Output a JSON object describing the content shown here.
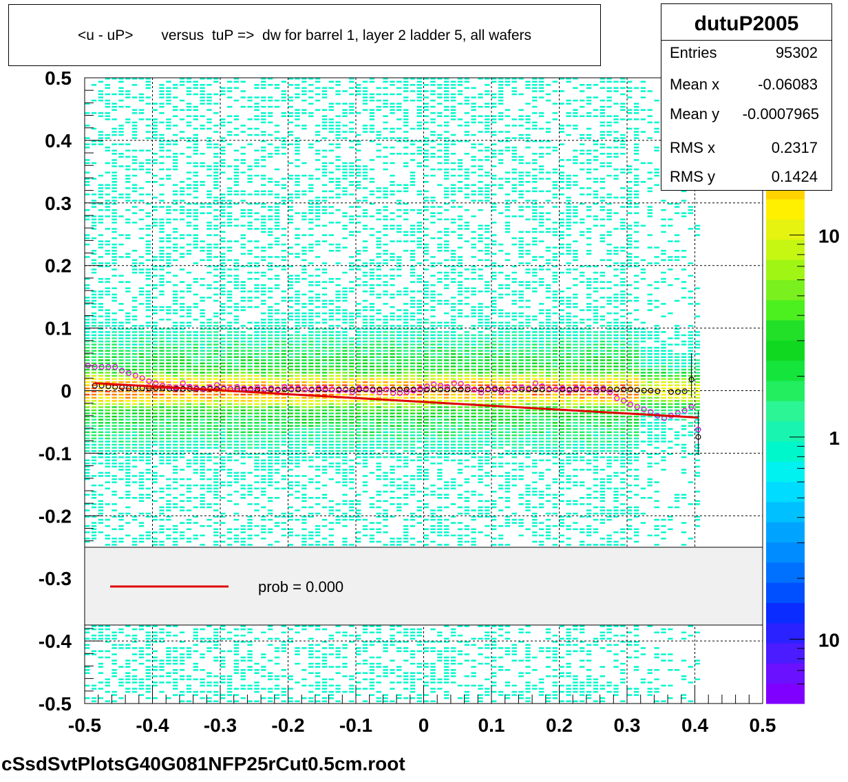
{
  "title": "<u - uP>       versus  tuP =>  dw for barrel 1, layer 2 ladder 5, all wafers",
  "footer": "cSsdSvtPlotsG40G081NFP25rCut0.5cm.root",
  "stats": {
    "name": "dutuP2005",
    "rows": [
      {
        "label": "Entries",
        "value": "95302"
      },
      {
        "label": "Mean x",
        "value": "-0.06083"
      },
      {
        "label": "Mean y",
        "value": "-0.0007965"
      },
      {
        "label": "RMS x",
        "value": "0.2317"
      },
      {
        "label": "RMS y",
        "value": "0.1424"
      }
    ]
  },
  "legend": {
    "label": "prob = 0.000",
    "line_color": "#e00000"
  },
  "chart_data": {
    "type": "heatmap",
    "xlim": [
      -0.5,
      0.5
    ],
    "ylim": [
      -0.5,
      0.5
    ],
    "x_ticks": [
      "-0.5",
      "-0.4",
      "-0.3",
      "-0.2",
      "-0.1",
      "0",
      "0.1",
      "0.2",
      "0.3",
      "0.4",
      "0.5"
    ],
    "y_ticks": [
      "-0.5",
      "-0.4",
      "-0.3",
      "-0.2",
      "-0.1",
      "0",
      "0.1",
      "0.2",
      "0.3",
      "0.4",
      "0.5"
    ],
    "x_tick_values": [
      -0.5,
      -0.4,
      -0.3,
      -0.2,
      -0.1,
      0,
      0.1,
      0.2,
      0.3,
      0.4,
      0.5
    ],
    "y_tick_values": [
      -0.5,
      -0.4,
      -0.3,
      -0.2,
      -0.1,
      0,
      0.1,
      0.2,
      0.3,
      0.4,
      0.5
    ],
    "grid": true,
    "log_z": true,
    "z_labels": [
      {
        "label": "10",
        "z": 10
      },
      {
        "label": "1",
        "z": 1
      },
      {
        "label": "10",
        "z": 0.1
      }
    ],
    "palette": [
      "#7f00ff",
      "#6a11ff",
      "#4b1cff",
      "#2a22ff",
      "#0a2cff",
      "#0050ff",
      "#0070ff",
      "#008cff",
      "#00a4ff",
      "#00c0ff",
      "#00dcff",
      "#00f2f0",
      "#00f7cc",
      "#19f5b0",
      "#2bf594",
      "#22ee60",
      "#14e43c",
      "#10d820",
      "#22e028",
      "#4cf01e",
      "#7af01e",
      "#a0f514",
      "#c6f712",
      "#e6f210",
      "#fff000",
      "#ffd200",
      "#ffa800",
      "#ff7a00",
      "#ff4a00",
      "#ff2000",
      "#f00000"
    ],
    "density_center": {
      "x": [
        -0.49,
        0.39
      ],
      "y": [
        0.0,
        0.0
      ]
    },
    "mean_points_black": {
      "x": [
        -0.485,
        -0.475,
        -0.465,
        -0.455,
        -0.445,
        -0.435,
        -0.425,
        -0.415,
        -0.405,
        -0.395,
        -0.385,
        -0.375,
        -0.365,
        -0.355,
        -0.345,
        -0.335,
        -0.325,
        -0.315,
        -0.305,
        -0.295,
        -0.285,
        -0.275,
        -0.265,
        -0.255,
        -0.245,
        -0.235,
        -0.225,
        -0.215,
        -0.205,
        -0.195,
        -0.185,
        -0.175,
        -0.165,
        -0.155,
        -0.145,
        -0.135,
        -0.125,
        -0.115,
        -0.105,
        -0.095,
        -0.085,
        -0.075,
        -0.065,
        -0.055,
        -0.045,
        -0.035,
        -0.025,
        -0.015,
        -0.005,
        0.005,
        0.015,
        0.025,
        0.035,
        0.045,
        0.055,
        0.065,
        0.075,
        0.085,
        0.095,
        0.105,
        0.115,
        0.125,
        0.135,
        0.145,
        0.155,
        0.165,
        0.175,
        0.185,
        0.195,
        0.205,
        0.215,
        0.225,
        0.235,
        0.245,
        0.255,
        0.265,
        0.275,
        0.285,
        0.295,
        0.305,
        0.315,
        0.325,
        0.335,
        0.345,
        0.365,
        0.375,
        0.385,
        0.395,
        0.405
      ],
      "y": [
        0.008,
        0.008,
        0.007,
        0.006,
        0.005,
        0.004,
        0.004,
        0.004,
        0.004,
        0.004,
        0.004,
        0.003,
        0.003,
        0.003,
        0.003,
        0.003,
        0.003,
        0.003,
        0.003,
        0.003,
        0.003,
        0.003,
        0.002,
        0.002,
        0.002,
        0.002,
        0.002,
        0.002,
        0.002,
        0.002,
        0.002,
        0.002,
        0.002,
        0.002,
        0.002,
        0.002,
        0.002,
        0.002,
        0.002,
        0.002,
        0.002,
        0.002,
        0.002,
        0.002,
        0.002,
        0.002,
        0.002,
        0.002,
        0.002,
        0.002,
        0.002,
        0.002,
        0.002,
        0.002,
        0.002,
        0.002,
        0.002,
        0.002,
        0.002,
        0.002,
        0.002,
        0.002,
        0.002,
        0.002,
        0.002,
        0.002,
        0.002,
        0.002,
        0.002,
        0.002,
        0.002,
        0.002,
        0.002,
        0.002,
        0.002,
        0.002,
        0.002,
        0.002,
        0.002,
        0.002,
        0.001,
        0.0,
        0.0,
        -0.001,
        -0.002,
        -0.002,
        -0.001,
        0.018,
        -0.074
      ]
    },
    "mean_points_magenta": {
      "x": [
        -0.495,
        -0.485,
        -0.475,
        -0.465,
        -0.455,
        -0.445,
        -0.435,
        -0.425,
        -0.415,
        -0.405,
        -0.395,
        -0.385,
        -0.375,
        -0.365,
        -0.355,
        -0.345,
        -0.335,
        -0.325,
        -0.315,
        -0.305,
        -0.295,
        -0.285,
        -0.275,
        -0.265,
        -0.255,
        -0.245,
        -0.235,
        -0.225,
        -0.215,
        -0.205,
        -0.195,
        -0.185,
        -0.175,
        -0.165,
        -0.155,
        -0.145,
        -0.135,
        -0.125,
        -0.115,
        -0.105,
        -0.095,
        -0.085,
        -0.075,
        -0.065,
        -0.055,
        -0.045,
        -0.035,
        -0.025,
        -0.015,
        -0.005,
        0.005,
        0.015,
        0.025,
        0.035,
        0.045,
        0.055,
        0.065,
        0.075,
        0.085,
        0.095,
        0.105,
        0.115,
        0.125,
        0.135,
        0.145,
        0.155,
        0.165,
        0.175,
        0.185,
        0.195,
        0.205,
        0.215,
        0.225,
        0.235,
        0.245,
        0.255,
        0.265,
        0.275,
        0.285,
        0.295,
        0.305,
        0.315,
        0.325,
        0.335,
        0.345,
        0.355,
        0.365,
        0.375,
        0.385,
        0.395,
        0.405
      ],
      "y": [
        0.04,
        0.038,
        0.038,
        0.038,
        0.038,
        0.032,
        0.028,
        0.024,
        0.02,
        0.015,
        0.012,
        0.008,
        0.006,
        0.005,
        0.012,
        0.006,
        0.004,
        0.002,
        0.005,
        0.009,
        0.004,
        0.003,
        0.006,
        0.004,
        0.003,
        0.005,
        0.002,
        0.004,
        0.001,
        0.006,
        0.003,
        0.004,
        0.002,
        0.001,
        0.004,
        0.003,
        0.002,
        0.0,
        0.001,
        -0.002,
        0.004,
        0.003,
        0.0,
        -0.003,
        0.002,
        -0.004,
        -0.004,
        -0.002,
        0.0,
        0.003,
        0.007,
        0.01,
        0.008,
        0.006,
        0.012,
        0.011,
        0.006,
        0.002,
        -0.003,
        0.003,
        0.004,
        -0.002,
        0.002,
        0.003,
        0.005,
        0.004,
        0.012,
        0.007,
        0.003,
        0.002,
        0.004,
        0.0,
        0.004,
        0.003,
        0.002,
        -0.002,
        0.004,
        -0.002,
        -0.012,
        -0.016,
        -0.022,
        -0.026,
        -0.03,
        -0.034,
        -0.04,
        -0.044,
        -0.04,
        -0.036,
        -0.032,
        -0.026,
        -0.062
      ]
    },
    "fit_line": {
      "x": [
        -0.485,
        0.405
      ],
      "y": [
        0.012,
        -0.043
      ]
    }
  }
}
